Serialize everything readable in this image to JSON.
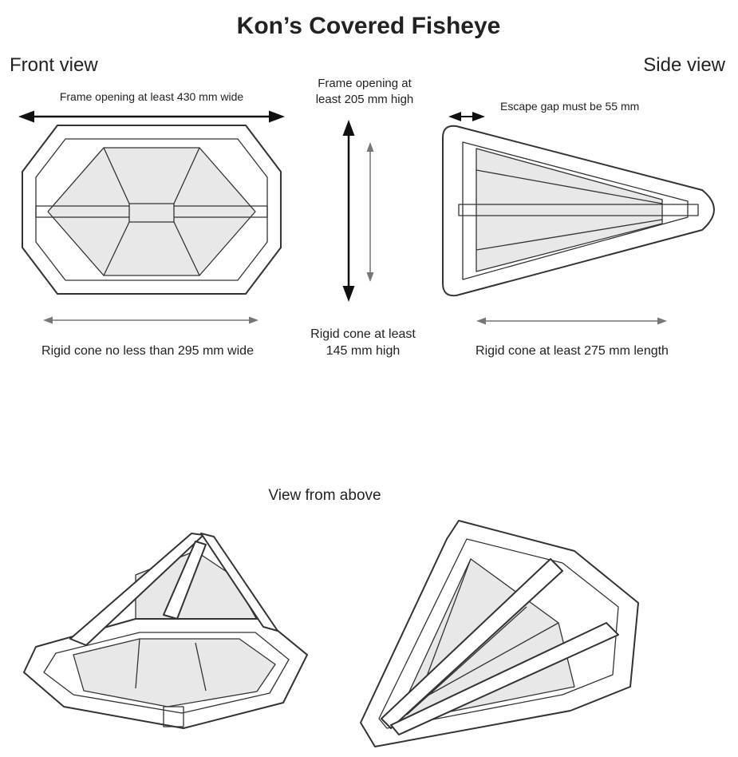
{
  "header": {
    "title": "Kon’s Covered Fisheye"
  },
  "front_view": {
    "label": "Front view",
    "frame_width": "Frame opening at least 430 mm wide",
    "cone_width": "Rigid cone no less than 295 mm wide"
  },
  "middle": {
    "frame_height": {
      "lines": [
        "Frame opening at",
        "least 205 mm high"
      ]
    },
    "cone_height": {
      "lines": [
        "Rigid cone at least",
        "145 mm high"
      ]
    }
  },
  "side_view": {
    "label": "Side view",
    "escape_gap": "Escape gap must be 55 mm",
    "cone_length": "Rigid cone at least 275 mm length"
  },
  "above_view": {
    "label": "View from above"
  }
}
